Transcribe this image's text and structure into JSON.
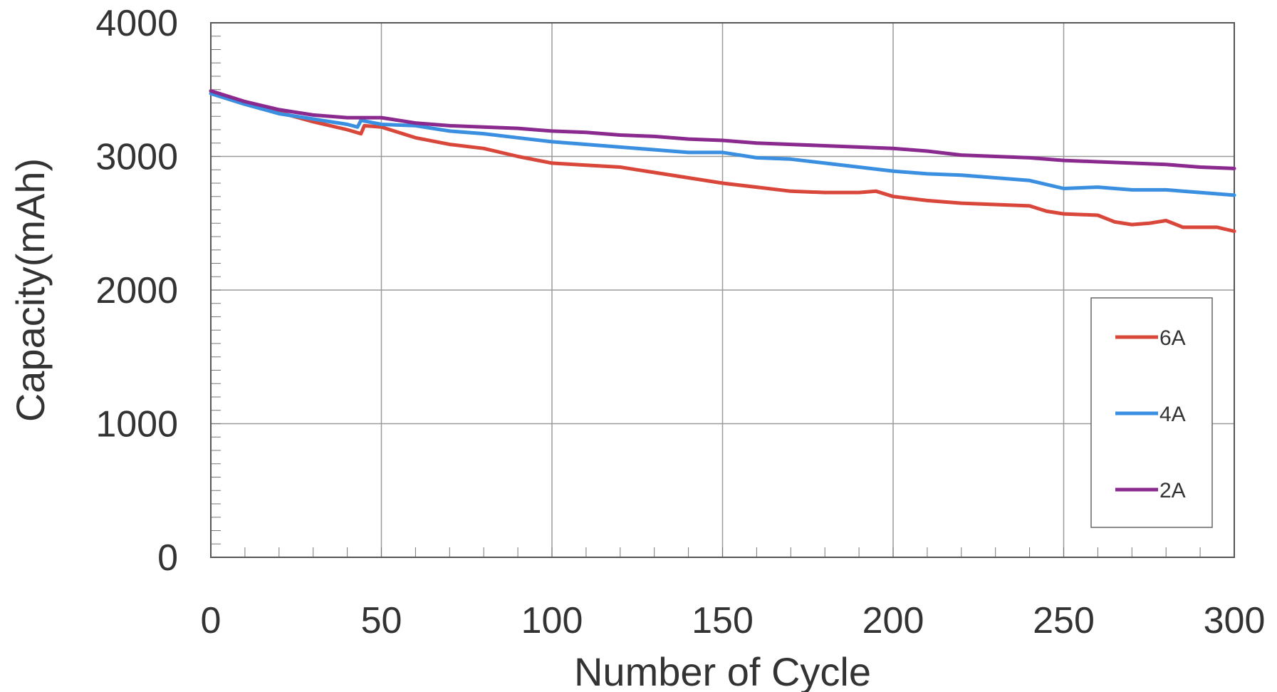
{
  "chart_data": {
    "type": "line",
    "title": "",
    "xlabel": "Number of Cycle",
    "ylabel": "Capacity(mAh)",
    "xlim": [
      0,
      300
    ],
    "ylim": [
      0,
      4000
    ],
    "x_ticks": [
      0,
      50,
      100,
      150,
      200,
      250,
      300
    ],
    "y_ticks": [
      0,
      1000,
      2000,
      3000,
      4000
    ],
    "x_tick_labels": [
      "0",
      "50",
      "100",
      "150",
      "200",
      "250",
      "300"
    ],
    "y_tick_labels": [
      "0",
      "1000",
      "2000",
      "3000",
      "4000"
    ],
    "grid": true,
    "legend_position": "right",
    "series": [
      {
        "name": "6A",
        "color": "#d9473b",
        "points": [
          [
            0,
            3490
          ],
          [
            10,
            3410
          ],
          [
            20,
            3330
          ],
          [
            30,
            3260
          ],
          [
            40,
            3200
          ],
          [
            44,
            3170
          ],
          [
            45,
            3230
          ],
          [
            50,
            3220
          ],
          [
            60,
            3140
          ],
          [
            70,
            3090
          ],
          [
            80,
            3060
          ],
          [
            90,
            3000
          ],
          [
            100,
            2950
          ],
          [
            110,
            2935
          ],
          [
            120,
            2920
          ],
          [
            130,
            2880
          ],
          [
            140,
            2840
          ],
          [
            150,
            2800
          ],
          [
            160,
            2770
          ],
          [
            170,
            2740
          ],
          [
            180,
            2730
          ],
          [
            190,
            2730
          ],
          [
            195,
            2740
          ],
          [
            200,
            2700
          ],
          [
            210,
            2670
          ],
          [
            220,
            2650
          ],
          [
            230,
            2640
          ],
          [
            240,
            2630
          ],
          [
            245,
            2590
          ],
          [
            250,
            2570
          ],
          [
            260,
            2560
          ],
          [
            265,
            2510
          ],
          [
            270,
            2490
          ],
          [
            275,
            2500
          ],
          [
            280,
            2520
          ],
          [
            285,
            2470
          ],
          [
            290,
            2470
          ],
          [
            295,
            2470
          ],
          [
            300,
            2440
          ]
        ]
      },
      {
        "name": "4A",
        "color": "#3b8fe0",
        "points": [
          [
            0,
            3470
          ],
          [
            10,
            3390
          ],
          [
            20,
            3320
          ],
          [
            30,
            3280
          ],
          [
            40,
            3240
          ],
          [
            43,
            3220
          ],
          [
            44,
            3270
          ],
          [
            50,
            3240
          ],
          [
            60,
            3230
          ],
          [
            70,
            3190
          ],
          [
            80,
            3170
          ],
          [
            90,
            3140
          ],
          [
            100,
            3110
          ],
          [
            110,
            3090
          ],
          [
            120,
            3070
          ],
          [
            130,
            3050
          ],
          [
            140,
            3030
          ],
          [
            150,
            3030
          ],
          [
            160,
            2990
          ],
          [
            170,
            2980
          ],
          [
            180,
            2950
          ],
          [
            190,
            2920
          ],
          [
            200,
            2890
          ],
          [
            210,
            2870
          ],
          [
            220,
            2860
          ],
          [
            230,
            2840
          ],
          [
            240,
            2820
          ],
          [
            250,
            2760
          ],
          [
            260,
            2770
          ],
          [
            270,
            2750
          ],
          [
            280,
            2750
          ],
          [
            290,
            2730
          ],
          [
            300,
            2710
          ]
        ]
      },
      {
        "name": "2A",
        "color": "#8a2a8f",
        "points": [
          [
            0,
            3490
          ],
          [
            10,
            3410
          ],
          [
            20,
            3350
          ],
          [
            30,
            3310
          ],
          [
            40,
            3290
          ],
          [
            50,
            3290
          ],
          [
            60,
            3250
          ],
          [
            70,
            3230
          ],
          [
            80,
            3220
          ],
          [
            90,
            3210
          ],
          [
            100,
            3190
          ],
          [
            110,
            3180
          ],
          [
            120,
            3160
          ],
          [
            130,
            3150
          ],
          [
            140,
            3130
          ],
          [
            150,
            3120
          ],
          [
            160,
            3100
          ],
          [
            170,
            3090
          ],
          [
            180,
            3080
          ],
          [
            190,
            3070
          ],
          [
            200,
            3060
          ],
          [
            210,
            3040
          ],
          [
            220,
            3010
          ],
          [
            230,
            3000
          ],
          [
            240,
            2990
          ],
          [
            250,
            2970
          ],
          [
            260,
            2960
          ],
          [
            270,
            2950
          ],
          [
            280,
            2940
          ],
          [
            290,
            2920
          ],
          [
            300,
            2910
          ]
        ]
      }
    ]
  }
}
